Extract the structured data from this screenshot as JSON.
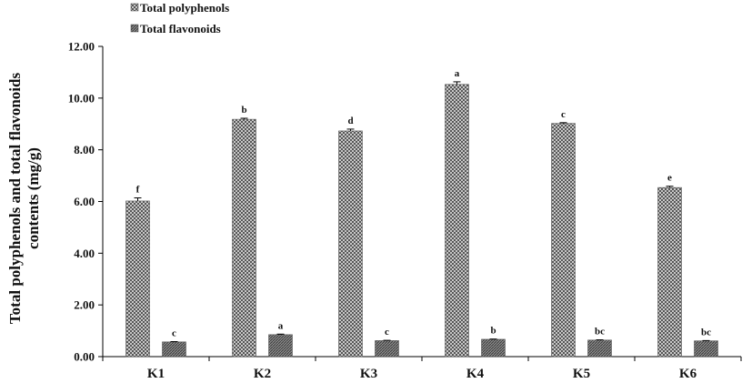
{
  "chart_data": {
    "type": "bar",
    "categories": [
      "K1",
      "K2",
      "K3",
      "K4",
      "K5",
      "K6"
    ],
    "series": [
      {
        "name": "Total polyphenols",
        "values": [
          6.02,
          9.18,
          8.73,
          10.53,
          9.02,
          6.54
        ],
        "errors": [
          0.12,
          0.04,
          0.07,
          0.1,
          0.03,
          0.05
        ],
        "sig_labels": [
          "f",
          "b",
          "d",
          "a",
          "c",
          "e"
        ],
        "pattern": "crosshatch"
      },
      {
        "name": "Total flavonoids",
        "values": [
          0.57,
          0.85,
          0.62,
          0.67,
          0.64,
          0.61
        ],
        "errors": [
          0.01,
          0.02,
          0.01,
          0.01,
          0.01,
          0.01
        ],
        "sig_labels": [
          "c",
          "a",
          "c",
          "b",
          "bc",
          "bc"
        ],
        "pattern": "dense-hatch"
      }
    ],
    "yticks": [
      "0.00",
      "2.00",
      "4.00",
      "6.00",
      "8.00",
      "10.00",
      "12.00"
    ],
    "ylim": [
      0,
      12
    ],
    "ylabel_line1": "Total polyphenols and total flavonoids",
    "ylabel_line2": "contents (mg/g)",
    "xlabel": "",
    "title": "",
    "legend_position": "top-left",
    "grid": false
  }
}
